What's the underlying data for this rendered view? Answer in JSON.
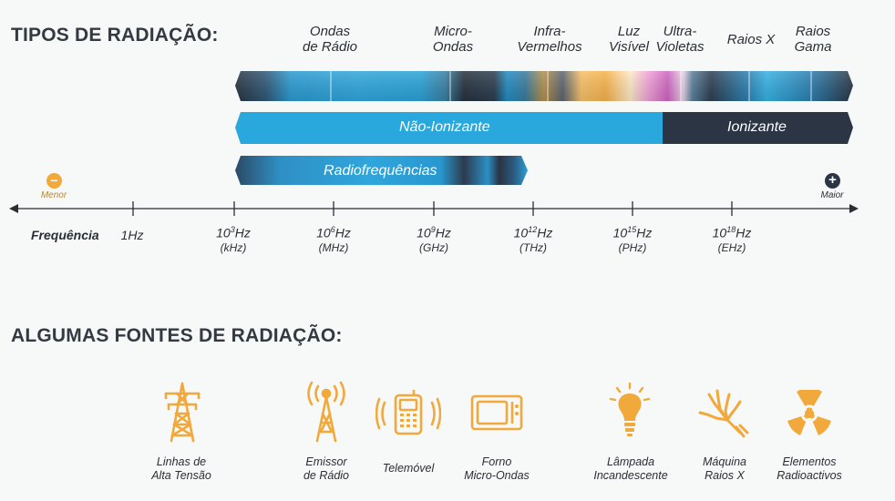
{
  "headings": {
    "types": "TIPOS DE RADIAÇÃO:",
    "sources": "ALGUMAS FONTES DE RADIAÇÃO:"
  },
  "bands": [
    {
      "line1": "Ondas",
      "line2": "de Rádio"
    },
    {
      "line1": "Micro-",
      "line2": "Ondas"
    },
    {
      "line1": "Infra-",
      "line2": "Vermelhos"
    },
    {
      "line1": "Luz",
      "line2": "Visível"
    },
    {
      "line1": "Ultra-",
      "line2": "Violetas"
    },
    {
      "line1": "Raios X",
      "line2": ""
    },
    {
      "line1": "Raios",
      "line2": "Gama"
    }
  ],
  "bars": {
    "non_ionizing": "Não-Ionizante",
    "ionizing": "Ionizante",
    "radiofrequency": "Radiofrequências"
  },
  "axis": {
    "word": "Frequência",
    "min_label": "Menor",
    "max_label": "Maior",
    "min_symbol": "−",
    "max_symbol": "+",
    "ticks": [
      {
        "base": "1Hz",
        "exp": "",
        "after": "",
        "unit": ""
      },
      {
        "base": "10",
        "exp": "3",
        "after": "Hz",
        "unit": "(kHz)"
      },
      {
        "base": "10",
        "exp": "6",
        "after": "Hz",
        "unit": "(MHz)"
      },
      {
        "base": "10",
        "exp": "9",
        "after": "Hz",
        "unit": "(GHz)"
      },
      {
        "base": "10",
        "exp": "12",
        "after": "Hz",
        "unit": "(THz)"
      },
      {
        "base": "10",
        "exp": "15",
        "after": "Hz",
        "unit": "(PHz)"
      },
      {
        "base": "10",
        "exp": "18",
        "after": "Hz",
        "unit": "(EHz)"
      }
    ]
  },
  "sources": [
    {
      "line1": "Linhas de",
      "line2": "Alta Tensão",
      "icon": "power-tower-icon"
    },
    {
      "line1": "Emissor",
      "line2": "de Rádio",
      "icon": "radio-antenna-icon"
    },
    {
      "line1": "Telemóvel",
      "line2": "",
      "icon": "mobile-phone-icon"
    },
    {
      "line1": "Forno",
      "line2": "Micro-Ondas",
      "icon": "microwave-oven-icon"
    },
    {
      "line1": "Lâmpada",
      "line2": "Incandescente",
      "icon": "light-bulb-icon"
    },
    {
      "line1": "Máquina",
      "line2": "Raios X",
      "icon": "xray-hand-icon"
    },
    {
      "line1": "Elementos",
      "line2": "Radioactivos",
      "icon": "radioactive-icon"
    }
  ],
  "colors": {
    "accent": "#f2a93b",
    "blue": "#29a8de",
    "dark": "#2b3544",
    "text": "#2a2f36"
  }
}
